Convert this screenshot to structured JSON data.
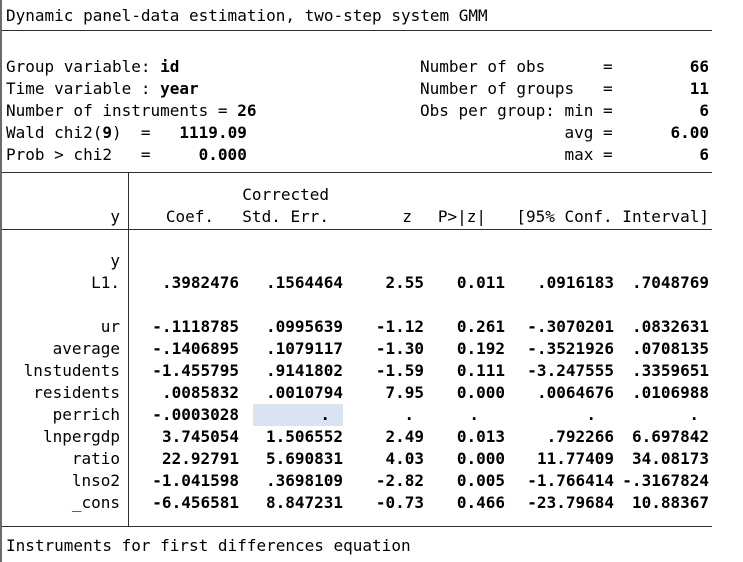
{
  "title": "Dynamic panel-data estimation, two-step system GMM",
  "stats": {
    "left": [
      [
        {
          "t": "Group variable: "
        },
        {
          "t": "id",
          "b": true
        }
      ],
      [
        {
          "t": "Time variable : "
        },
        {
          "t": "year",
          "b": true
        }
      ],
      [
        {
          "t": "Number of instruments = "
        },
        {
          "t": "26",
          "b": true
        }
      ],
      [
        {
          "t": "Wald chi2("
        },
        {
          "t": "9",
          "b": true
        },
        {
          "t": ")  =   "
        },
        {
          "t": "1119.09",
          "b": true
        }
      ],
      [
        {
          "t": "Prob > chi2   =     "
        },
        {
          "t": "0.000",
          "b": true
        }
      ]
    ],
    "right": [
      [
        {
          "t": "Number of obs      =        "
        },
        {
          "t": "66",
          "b": true
        }
      ],
      [
        {
          "t": "Number of groups   =        "
        },
        {
          "t": "11",
          "b": true
        }
      ],
      [
        {
          "t": "Obs per group: min =         "
        },
        {
          "t": "6",
          "b": true
        }
      ],
      [
        {
          "t": "               avg =      "
        },
        {
          "t": "6.00",
          "b": true
        }
      ],
      [
        {
          "t": "               max =         "
        },
        {
          "t": "6",
          "b": true
        }
      ]
    ]
  },
  "table": {
    "header": {
      "corrected": "Corrected",
      "depvar": "y",
      "coef": "Coef.",
      "stderr": "Std. Err.",
      "z": "z",
      "p": "P>|z|",
      "ci": "[95% Conf. Interval]"
    },
    "rows": [
      {
        "label": "y",
        "cells": null
      },
      {
        "label": "L1.",
        "cells": [
          ".3982476",
          ".1564464",
          "2.55",
          "0.011",
          ".0916183",
          ".7048769"
        ]
      },
      {
        "label": "",
        "cells": null,
        "spacer": true
      },
      {
        "label": "ur",
        "cells": [
          "-.1118785",
          ".0995639",
          "-1.12",
          "0.261",
          "-.3070201",
          ".0832631"
        ]
      },
      {
        "label": "average",
        "cells": [
          "-.1406895",
          ".1079117",
          "-1.30",
          "0.192",
          "-.3521926",
          ".0708135"
        ]
      },
      {
        "label": "lnstudents",
        "cells": [
          "-1.455795",
          ".9141802",
          "-1.59",
          "0.111",
          "-3.247555",
          ".3359651"
        ]
      },
      {
        "label": "residents",
        "cells": [
          ".0085832",
          ".0010794",
          "7.95",
          "0.000",
          ".0064676",
          ".0106988"
        ]
      },
      {
        "label": "perrich",
        "cells": [
          "-.0003028",
          ".",
          ".",
          ".",
          ".",
          "."
        ],
        "hl_cell": 1
      },
      {
        "label": "lnpergdp",
        "cells": [
          "3.745054",
          "1.506552",
          "2.49",
          "0.013",
          ".792266",
          "6.697842"
        ]
      },
      {
        "label": "ratio",
        "cells": [
          "22.92791",
          "5.690831",
          "4.03",
          "0.000",
          "11.77409",
          "34.08173"
        ]
      },
      {
        "label": "lnso2",
        "cells": [
          "-1.041598",
          ".3698109",
          "-2.82",
          "0.005",
          "-1.766414",
          "-.3167824"
        ]
      },
      {
        "label": "_cons",
        "cells": [
          "-6.456581",
          "8.847231",
          "-0.73",
          "0.466",
          "-23.79684",
          "10.88367"
        ]
      }
    ]
  },
  "footer": "Instruments for first differences equation",
  "colors": {
    "selection_highlight": "#d8e4f2",
    "text": "#000000",
    "rule": "#2e2e2e"
  }
}
